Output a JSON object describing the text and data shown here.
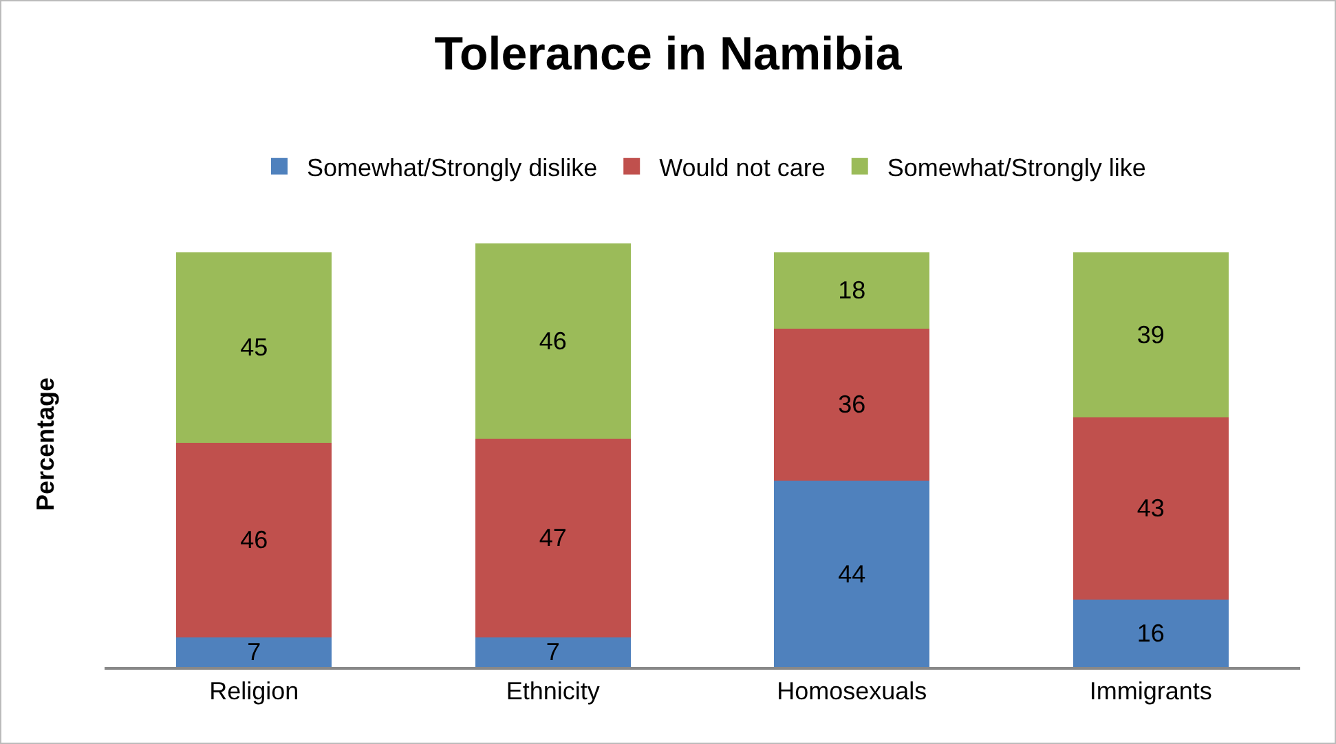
{
  "chart_data": {
    "type": "bar",
    "title": "Tolerance in Namibia",
    "ylabel": "Percentage",
    "stacked": true,
    "data_labels": true,
    "legend": "top",
    "grid": false,
    "tick_labels": "x",
    "categories": [
      "Religion",
      "Ethnicity",
      "Homosexuals",
      "Immigrants"
    ],
    "series": [
      {
        "name": "Somewhat/Strongly dislike",
        "color": "#4f81bd",
        "values": [
          7,
          7,
          44,
          16
        ]
      },
      {
        "name": "Would not care",
        "color": "#c0504d",
        "values": [
          46,
          47,
          36,
          43
        ]
      },
      {
        "name": "Somewhat/Strongly like",
        "color": "#9bbb59",
        "values": [
          45,
          46,
          18,
          39
        ]
      }
    ]
  }
}
